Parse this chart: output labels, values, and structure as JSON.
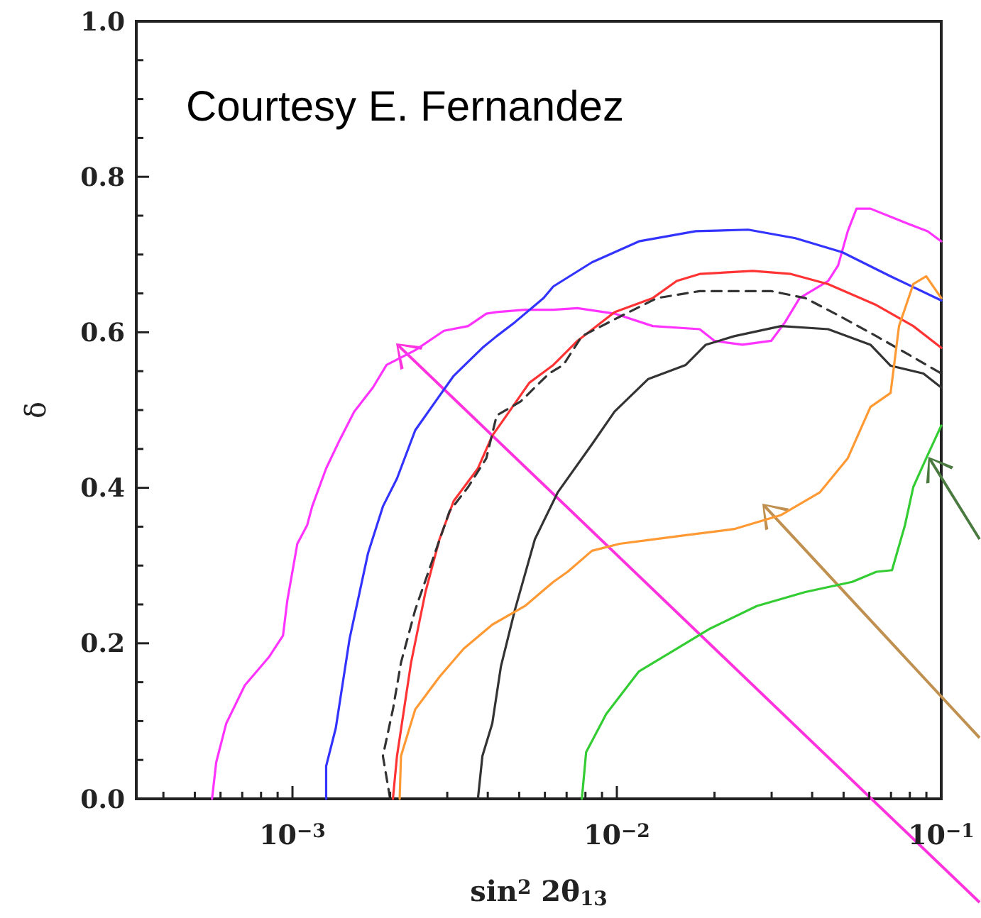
{
  "chart_data": {
    "type": "line",
    "xlabel": "sin$^{2}$ 2θ$_{13}$",
    "ylabel": "δ",
    "log": "x",
    "xlim": [
      0.00033,
      0.1
    ],
    "ylim": [
      0,
      1
    ],
    "xticks": [
      {
        "value": 0.0004,
        "label": null
      },
      {
        "value": 0.0005,
        "label": null
      },
      {
        "value": 0.0006,
        "label": null
      },
      {
        "value": 0.0007,
        "label": null
      },
      {
        "value": 0.0008,
        "label": null
      },
      {
        "value": 0.0009,
        "label": null
      },
      {
        "value": 0.001,
        "label": "10$^{−3}$"
      },
      {
        "value": 0.002,
        "label": null
      },
      {
        "value": 0.003,
        "label": null
      },
      {
        "value": 0.004,
        "label": null
      },
      {
        "value": 0.005,
        "label": null
      },
      {
        "value": 0.006,
        "label": null
      },
      {
        "value": 0.007,
        "label": null
      },
      {
        "value": 0.008,
        "label": null
      },
      {
        "value": 0.009,
        "label": null
      },
      {
        "value": 0.01,
        "label": "10$^{−2}$"
      },
      {
        "value": 0.02,
        "label": null
      },
      {
        "value": 0.03,
        "label": null
      },
      {
        "value": 0.04,
        "label": null
      },
      {
        "value": 0.05,
        "label": null
      },
      {
        "value": 0.06,
        "label": null
      },
      {
        "value": 0.07,
        "label": null
      },
      {
        "value": 0.08,
        "label": null
      },
      {
        "value": 0.09,
        "label": null
      },
      {
        "value": 0.1,
        "label": "10$^{−1}$"
      }
    ],
    "yticks": [
      {
        "value": 0,
        "label": "0.0"
      },
      {
        "value": 0.05,
        "label": null
      },
      {
        "value": 0.1,
        "label": null
      },
      {
        "value": 0.15,
        "label": null
      },
      {
        "value": 0.2,
        "label": "0.2"
      },
      {
        "value": 0.25,
        "label": null
      },
      {
        "value": 0.3,
        "label": null
      },
      {
        "value": 0.35,
        "label": null
      },
      {
        "value": 0.4,
        "label": "0.4"
      },
      {
        "value": 0.45,
        "label": null
      },
      {
        "value": 0.5,
        "label": null
      },
      {
        "value": 0.55,
        "label": null
      },
      {
        "value": 0.6,
        "label": "0.6"
      },
      {
        "value": 0.65,
        "label": null
      },
      {
        "value": 0.7,
        "label": null
      },
      {
        "value": 0.75,
        "label": null
      },
      {
        "value": 0.8,
        "label": "0.8"
      },
      {
        "value": 0.85,
        "label": null
      },
      {
        "value": 0.9,
        "label": null
      },
      {
        "value": 0.95,
        "label": null
      },
      {
        "value": 1,
        "label": "1.0"
      }
    ],
    "annotations": [
      "Courtesy E. Fernandez"
    ],
    "series": [
      {
        "color": "#ff33ff",
        "x": [
          0.000565,
          0.000582,
          0.000625,
          0.000713,
          0.000845,
          0.000935,
          0.000964,
          0.001035,
          0.00111,
          0.00115,
          0.00127,
          0.0014,
          0.00155,
          0.00177,
          0.00195,
          0.00239,
          0.00293,
          0.00348,
          0.00396,
          0.00426,
          0.00521,
          0.00637,
          0.00756,
          0.00984,
          0.0129,
          0.018,
          0.02,
          0.0244,
          0.0299,
          0.033,
          0.0366,
          0.0448,
          0.0481,
          0.0515,
          0.0548,
          0.0605,
          0.0796,
          0.0908,
          0.1
        ],
        "values": [
          0,
          0.047,
          0.097,
          0.146,
          0.182,
          0.21,
          0.255,
          0.328,
          0.352,
          0.376,
          0.425,
          0.462,
          0.498,
          0.529,
          0.558,
          0.577,
          0.602,
          0.608,
          0.624,
          0.626,
          0.629,
          0.629,
          0.631,
          0.624,
          0.608,
          0.604,
          0.589,
          0.584,
          0.589,
          0.613,
          0.644,
          0.666,
          0.686,
          0.73,
          0.759,
          0.759,
          0.739,
          0.73,
          0.717
        ]
      },
      {
        "color": "#3333ff",
        "x": [
          0.00127,
          0.00127,
          0.00136,
          0.0015,
          0.00171,
          0.0019,
          0.0021,
          0.00239,
          0.00276,
          0.00314,
          0.00385,
          0.00426,
          0.00485,
          0.00594,
          0.00637,
          0.00838,
          0.0117,
          0.0175,
          0.0254,
          0.0355,
          0.0495,
          0.0698,
          0.1
        ],
        "values": [
          0,
          0.042,
          0.091,
          0.206,
          0.316,
          0.376,
          0.412,
          0.474,
          0.511,
          0.544,
          0.58,
          0.595,
          0.613,
          0.644,
          0.659,
          0.69,
          0.717,
          0.73,
          0.732,
          0.721,
          0.703,
          0.672,
          0.641
        ]
      },
      {
        "color": "#ff3333",
        "x": [
          0.00204,
          0.0021,
          0.00232,
          0.00257,
          0.00284,
          0.00314,
          0.00373,
          0.00413,
          0.00457,
          0.00537,
          0.00637,
          0.00756,
          0.00984,
          0.0129,
          0.0153,
          0.018,
          0.0262,
          0.0344,
          0.0448,
          0.0631,
          0.082,
          0.1
        ],
        "values": [
          0,
          0.055,
          0.175,
          0.266,
          0.334,
          0.383,
          0.425,
          0.467,
          0.493,
          0.535,
          0.558,
          0.589,
          0.626,
          0.644,
          0.666,
          0.675,
          0.679,
          0.675,
          0.662,
          0.635,
          0.608,
          0.58
        ]
      },
      {
        "color": "#333333",
        "line_style": "dashed",
        "x": [
          0.002,
          0.0019,
          0.00204,
          0.00216,
          0.00239,
          0.00265,
          0.00305,
          0.00348,
          0.00396,
          0.00426,
          0.00505,
          0.00618,
          0.00684,
          0.0078,
          0.0102,
          0.0133,
          0.018,
          0.0299,
          0.0381,
          0.0481,
          0.0631,
          0.0796,
          0.1
        ],
        "values": [
          0,
          0.055,
          0.115,
          0.175,
          0.243,
          0.297,
          0.37,
          0.401,
          0.438,
          0.493,
          0.511,
          0.547,
          0.558,
          0.595,
          0.62,
          0.644,
          0.653,
          0.653,
          0.644,
          0.622,
          0.595,
          0.571,
          0.547
        ]
      },
      {
        "color": "#333333",
        "x": [
          0.00373,
          0.00385,
          0.00413,
          0.00439,
          0.00485,
          0.00559,
          0.00657,
          0.00838,
          0.00984,
          0.0125,
          0.0163,
          0.0188,
          0.023,
          0.0321,
          0.0448,
          0.0605,
          0.0698,
          0.0881,
          0.1
        ],
        "values": [
          0,
          0.055,
          0.097,
          0.17,
          0.243,
          0.334,
          0.394,
          0.456,
          0.498,
          0.54,
          0.558,
          0.584,
          0.595,
          0.608,
          0.604,
          0.584,
          0.557,
          0.547,
          0.529
        ]
      },
      {
        "color": "#ff9933",
        "x": [
          0.00214,
          0.00216,
          0.00239,
          0.00284,
          0.00337,
          0.00413,
          0.00521,
          0.00637,
          0.00705,
          0.00838,
          0.0102,
          0.0163,
          0.023,
          0.0321,
          0.0422,
          0.0515,
          0.0605,
          0.0698,
          0.0741,
          0.082,
          0.0899,
          0.1
        ],
        "values": [
          0,
          0.055,
          0.115,
          0.157,
          0.193,
          0.224,
          0.248,
          0.279,
          0.292,
          0.319,
          0.328,
          0.339,
          0.347,
          0.365,
          0.394,
          0.438,
          0.504,
          0.522,
          0.608,
          0.662,
          0.672,
          0.644
        ]
      },
      {
        "color": "#33cc33",
        "x": [
          0.0078,
          0.00804,
          0.00927,
          0.0117,
          0.0153,
          0.0194,
          0.027,
          0.0381,
          0.0531,
          0.0631,
          0.0705,
          0.0773,
          0.082,
          0.0899,
          0.1
        ],
        "values": [
          0,
          0.06,
          0.109,
          0.164,
          0.193,
          0.219,
          0.248,
          0.266,
          0.279,
          0.292,
          0.294,
          0.352,
          0.401,
          0.438,
          0.48
        ]
      }
    ]
  }
}
